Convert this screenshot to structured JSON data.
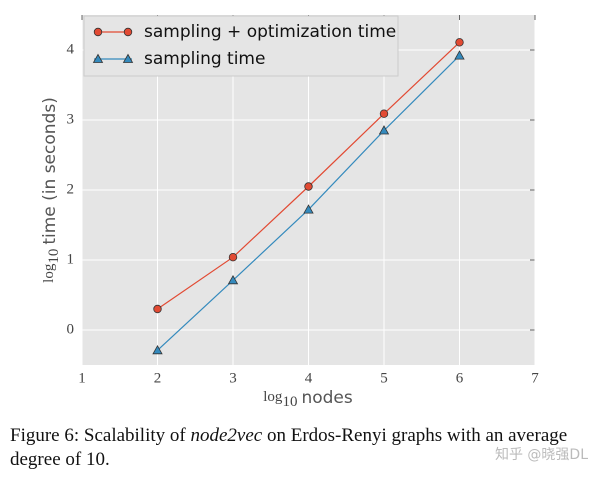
{
  "chart_data": {
    "type": "line",
    "x": [
      2,
      3,
      4,
      5,
      6
    ],
    "series": [
      {
        "name": "sampling + optimization time",
        "color": "#e24a33",
        "marker": "circle",
        "values": [
          0.3,
          1.04,
          2.05,
          3.09,
          4.11
        ]
      },
      {
        "name": "sampling time",
        "color": "#348abd",
        "marker": "triangle",
        "values": [
          -0.29,
          0.71,
          1.72,
          2.85,
          3.92
        ]
      }
    ],
    "xlim": [
      1,
      7
    ],
    "xticks": [
      1,
      2,
      3,
      4,
      5,
      6,
      7
    ],
    "ylim": [
      -0.5,
      4.5
    ],
    "yticks": [
      0,
      1,
      2,
      3,
      4
    ],
    "xlabel": {
      "log": "log",
      "sub": "10",
      "text": "nodes"
    },
    "ylabel": {
      "log": "log",
      "sub": "10",
      "text": "time (in seconds)"
    },
    "grid": true,
    "legend": "upper-left",
    "background": "#e5e5e5"
  },
  "caption": [
    "Figure 6: Scalability of",
    "node2vec",
    "on Erdos-Renyi graphs with an average degree of 10."
  ],
  "watermark": "知乎 @晓强DL"
}
